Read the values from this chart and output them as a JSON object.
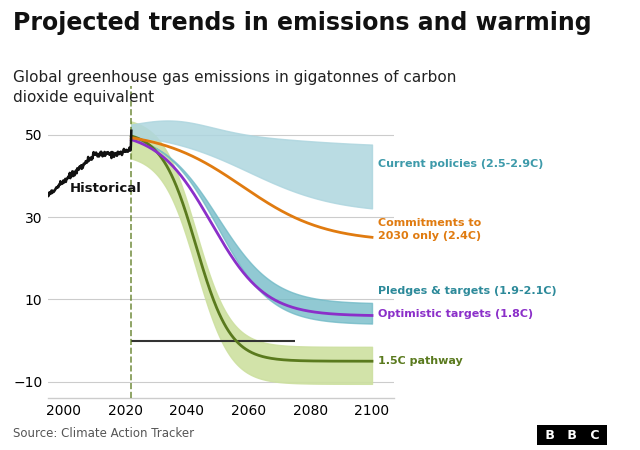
{
  "title": "Projected trends in emissions and warming",
  "subtitle": "Global greenhouse gas emissions in gigatonnes of carbon\ndioxide equivalent",
  "source": "Source: Climate Action Tracker",
  "title_fontsize": 17,
  "subtitle_fontsize": 11,
  "xlim": [
    1995,
    2107
  ],
  "ylim": [
    -14,
    62
  ],
  "xticks": [
    2000,
    2020,
    2040,
    2060,
    2080,
    2100
  ],
  "yticks": [
    -10,
    10,
    30,
    50
  ],
  "bg_color": "#ffffff",
  "historical_color": "#111111",
  "current_policies_color": "#3d9aaa",
  "current_policies_fill": "#aed6df",
  "commitments_color": "#e07b10",
  "pledges_color": "#2d8a9a",
  "pledges_fill": "#6db8c5",
  "optimistic_color": "#8b2fc9",
  "pathway_color": "#5a7a1e",
  "pathway_fill": "#cde0a0",
  "zero_line_color": "#333333",
  "grid_color": "#cccccc",
  "split_year": 2022,
  "label_current": "Current policies (2.5-2.9C)",
  "label_commitments": "Commitments to\n2030 only (2.4C)",
  "label_pledges": "Pledges & targets (1.9-2.1C)",
  "label_optimistic": "Optimistic targets (1.8C)",
  "label_pathway": "1.5C pathway",
  "label_historical": "Historical"
}
